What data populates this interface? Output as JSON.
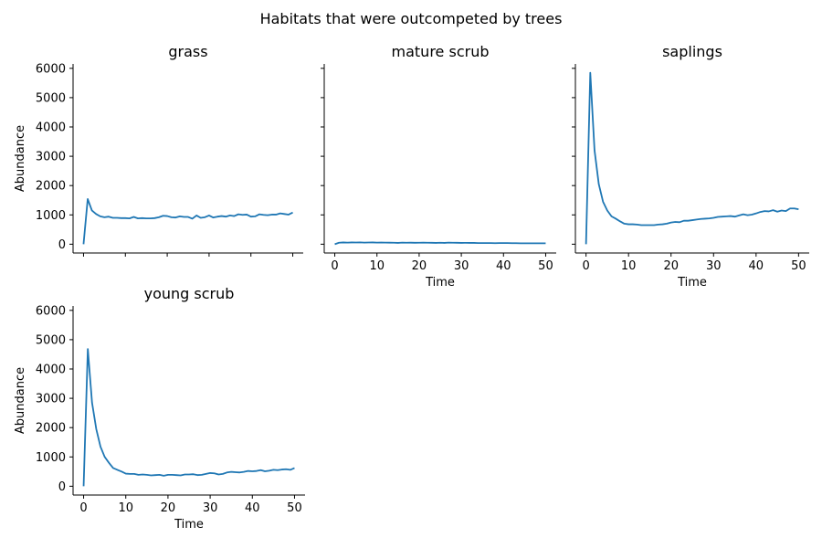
{
  "figure": {
    "suptitle": "Habitats that were outcompeted by trees"
  },
  "chart_data": [
    {
      "type": "line",
      "title": "grass",
      "xlabel": "",
      "ylabel": "Abundance",
      "xlim": [
        -2.5,
        52.5
      ],
      "ylim": [
        -300,
        6150
      ],
      "xticks": [
        0,
        10,
        20,
        30,
        40,
        50
      ],
      "yticks": [
        0,
        1000,
        2000,
        3000,
        4000,
        5000,
        6000
      ],
      "show_xticklabels": false,
      "show_yticklabels": true,
      "color": "#1f77b4",
      "x": [
        0,
        1,
        2,
        3,
        4,
        5,
        6,
        7,
        8,
        9,
        10,
        11,
        12,
        13,
        14,
        15,
        16,
        17,
        18,
        19,
        20,
        21,
        22,
        23,
        24,
        25,
        26,
        27,
        28,
        29,
        30,
        31,
        32,
        33,
        34,
        35,
        36,
        37,
        38,
        39,
        40,
        41,
        42,
        43,
        44,
        45,
        46,
        47,
        48,
        49,
        50
      ],
      "y": [
        0,
        1540,
        1150,
        1030,
        950,
        920,
        940,
        900,
        900,
        890,
        890,
        880,
        930,
        880,
        890,
        880,
        880,
        890,
        920,
        970,
        960,
        920,
        910,
        950,
        930,
        930,
        870,
        980,
        900,
        920,
        980,
        910,
        940,
        960,
        940,
        980,
        960,
        1020,
        1000,
        1010,
        940,
        950,
        1020,
        1000,
        990,
        1010,
        1010,
        1050,
        1030,
        1010,
        1080
      ]
    },
    {
      "type": "line",
      "title": "mature scrub",
      "xlabel": "Time",
      "ylabel": "",
      "xlim": [
        -2.5,
        52.5
      ],
      "ylim": [
        -300,
        6150
      ],
      "xticks": [
        0,
        10,
        20,
        30,
        40,
        50
      ],
      "yticks": [
        0,
        1000,
        2000,
        3000,
        4000,
        5000,
        6000
      ],
      "show_xticklabels": true,
      "show_yticklabels": false,
      "color": "#1f77b4",
      "x": [
        0,
        1,
        2,
        3,
        4,
        5,
        6,
        7,
        8,
        9,
        10,
        11,
        12,
        13,
        14,
        15,
        16,
        17,
        18,
        19,
        20,
        21,
        22,
        23,
        24,
        25,
        26,
        27,
        28,
        29,
        30,
        31,
        32,
        33,
        34,
        35,
        36,
        37,
        38,
        39,
        40,
        41,
        42,
        43,
        44,
        45,
        46,
        47,
        48,
        49,
        50
      ],
      "y": [
        0,
        50,
        60,
        55,
        60,
        58,
        62,
        55,
        58,
        60,
        55,
        57,
        55,
        52,
        50,
        45,
        55,
        50,
        52,
        48,
        50,
        55,
        50,
        48,
        45,
        50,
        45,
        55,
        50,
        48,
        45,
        47,
        45,
        45,
        40,
        40,
        38,
        40,
        35,
        40,
        38,
        38,
        35,
        35,
        30,
        30,
        32,
        30,
        30,
        30,
        30
      ]
    },
    {
      "type": "line",
      "title": "saplings",
      "xlabel": "Time",
      "ylabel": "",
      "xlim": [
        -2.5,
        52.5
      ],
      "ylim": [
        -300,
        6150
      ],
      "xticks": [
        0,
        10,
        20,
        30,
        40,
        50
      ],
      "yticks": [
        0,
        1000,
        2000,
        3000,
        4000,
        5000,
        6000
      ],
      "show_xticklabels": true,
      "show_yticklabels": false,
      "color": "#1f77b4",
      "x": [
        0,
        1,
        2,
        3,
        4,
        5,
        6,
        7,
        8,
        9,
        10,
        11,
        12,
        13,
        14,
        15,
        16,
        17,
        18,
        19,
        20,
        21,
        22,
        23,
        24,
        25,
        26,
        27,
        28,
        29,
        30,
        31,
        32,
        33,
        34,
        35,
        36,
        37,
        38,
        39,
        40,
        41,
        42,
        43,
        44,
        45,
        46,
        47,
        48,
        49,
        50
      ],
      "y": [
        0,
        5850,
        3200,
        2050,
        1450,
        1150,
        950,
        870,
        780,
        700,
        680,
        680,
        670,
        650,
        650,
        650,
        650,
        670,
        680,
        700,
        740,
        760,
        750,
        800,
        800,
        820,
        840,
        860,
        870,
        880,
        900,
        930,
        940,
        950,
        960,
        940,
        980,
        1020,
        990,
        1010,
        1050,
        1100,
        1130,
        1120,
        1160,
        1110,
        1150,
        1130,
        1220,
        1220,
        1190
      ]
    },
    {
      "type": "line",
      "title": "young scrub",
      "xlabel": "Time",
      "ylabel": "Abundance",
      "xlim": [
        -2.5,
        52.5
      ],
      "ylim": [
        -300,
        6150
      ],
      "xticks": [
        0,
        10,
        20,
        30,
        40,
        50
      ],
      "yticks": [
        0,
        1000,
        2000,
        3000,
        4000,
        5000,
        6000
      ],
      "show_xticklabels": true,
      "show_yticklabels": true,
      "color": "#1f77b4",
      "x": [
        0,
        1,
        2,
        3,
        4,
        5,
        6,
        7,
        8,
        9,
        10,
        11,
        12,
        13,
        14,
        15,
        16,
        17,
        18,
        19,
        20,
        21,
        22,
        23,
        24,
        25,
        26,
        27,
        28,
        29,
        30,
        31,
        32,
        33,
        34,
        35,
        36,
        37,
        38,
        39,
        40,
        41,
        42,
        43,
        44,
        45,
        46,
        47,
        48,
        49,
        50
      ],
      "y": [
        0,
        4680,
        2850,
        1950,
        1350,
        1000,
        800,
        620,
        560,
        500,
        430,
        420,
        420,
        390,
        400,
        390,
        370,
        380,
        390,
        360,
        390,
        390,
        380,
        370,
        400,
        400,
        410,
        380,
        390,
        420,
        450,
        440,
        400,
        420,
        470,
        490,
        480,
        470,
        490,
        520,
        510,
        520,
        550,
        510,
        530,
        560,
        550,
        570,
        580,
        560,
        620
      ]
    }
  ]
}
